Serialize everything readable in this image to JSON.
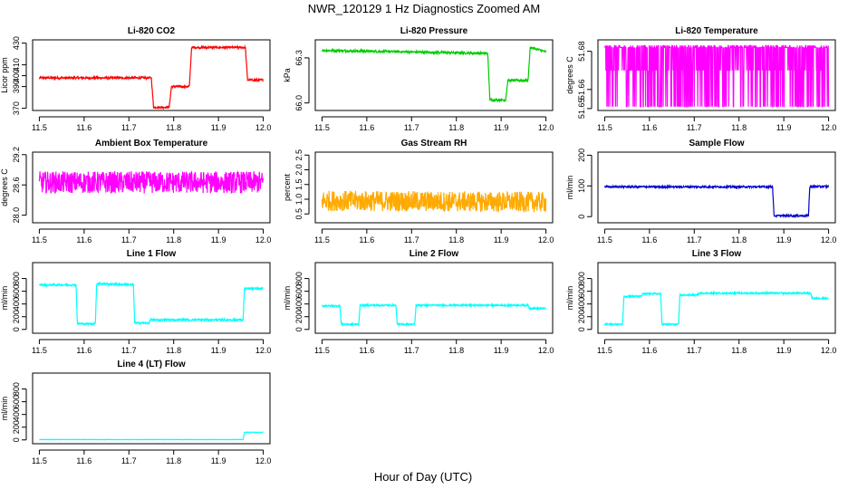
{
  "title": "NWR_120129  1 Hz Diagnostics Zoomed AM",
  "xlabel": "Hour of Day (UTC)",
  "chart_data": [
    {
      "type": "line",
      "title": "Li-820 CO2",
      "ylabel": "Licor ppm",
      "color": "#ff0000",
      "xlim": [
        11.5,
        12.0
      ],
      "ylim": [
        368,
        433
      ],
      "xticks": [
        "11.5",
        "11.6",
        "11.7",
        "11.8",
        "11.9",
        "12.0"
      ],
      "yticks": [
        370,
        390,
        400,
        410,
        430
      ],
      "series": [
        {
          "x": [
            11.5,
            11.75,
            11.755,
            11.79,
            11.795,
            11.835,
            11.84,
            11.96,
            11.965,
            12.0
          ],
          "values": [
            398,
            398,
            371,
            371,
            390,
            390,
            426,
            426,
            396,
            396
          ],
          "noise": 1
        }
      ]
    },
    {
      "type": "line",
      "title": "Li-820 Pressure",
      "ylabel": "kPa",
      "color": "#00cc00",
      "xlim": [
        11.5,
        12.0
      ],
      "ylim": [
        65.95,
        66.42
      ],
      "xticks": [
        "11.5",
        "11.6",
        "11.7",
        "11.8",
        "11.9",
        "12.0"
      ],
      "yticks": [
        "66.0",
        "66.3"
      ],
      "series": [
        {
          "x": [
            11.5,
            11.87,
            11.875,
            11.91,
            11.915,
            11.96,
            11.965,
            12.0
          ],
          "values": [
            66.35,
            66.33,
            66.02,
            66.02,
            66.15,
            66.15,
            66.37,
            66.34
          ],
          "noise": 0.008
        }
      ]
    },
    {
      "type": "line",
      "title": "Li-820 Temperature",
      "ylabel": "degrees C",
      "color": "#ff00ff",
      "xlim": [
        11.5,
        12.0
      ],
      "ylim": [
        51.649,
        51.686
      ],
      "xticks": [
        "11.5",
        "11.6",
        "11.7",
        "11.8",
        "11.9",
        "12.0"
      ],
      "yticks": [
        "51.65",
        "51.66",
        "51.68"
      ],
      "series": [
        {
          "x": [
            11.5,
            12.0
          ],
          "values": [
            51.682,
            51.682
          ],
          "levels": [
            51.651,
            51.67,
            51.682,
            51.682,
            51.683
          ]
        }
      ]
    },
    {
      "type": "line",
      "title": "Ambient Box Temperature",
      "ylabel": "degrees C",
      "color": "#ff00ff",
      "xlim": [
        11.5,
        12.0
      ],
      "ylim": [
        27.85,
        29.25
      ],
      "xticks": [
        "11.5",
        "11.6",
        "11.7",
        "11.8",
        "11.9",
        "12.0"
      ],
      "yticks": [
        "28.0",
        "28.6",
        "29.2"
      ],
      "series": [
        {
          "x": [
            11.5,
            12.0
          ],
          "values": [
            28.65,
            28.65
          ],
          "noise": 0.22
        }
      ]
    },
    {
      "type": "line",
      "title": "Gas Stream RH",
      "ylabel": "percent",
      "color": "#ffaa00",
      "xlim": [
        11.5,
        12.0
      ],
      "ylim": [
        0.2,
        2.6
      ],
      "xticks": [
        "11.5",
        "11.6",
        "11.7",
        "11.8",
        "11.9",
        "12.0"
      ],
      "yticks": [
        "0.5",
        "1.0",
        "1.5",
        "2.0",
        "2.5"
      ],
      "series": [
        {
          "x": [
            11.5,
            12.0
          ],
          "values": [
            0.95,
            0.9
          ],
          "noise": 0.35
        }
      ]
    },
    {
      "type": "line",
      "title": "Sample Flow",
      "ylabel": "ml/min",
      "color": "#0000cc",
      "xlim": [
        11.5,
        12.0
      ],
      "ylim": [
        -20,
        210
      ],
      "xticks": [
        "11.5",
        "11.6",
        "11.7",
        "11.8",
        "11.9",
        "12.0"
      ],
      "yticks": [
        0,
        100,
        200
      ],
      "series": [
        {
          "x": [
            11.5,
            11.875,
            11.878,
            11.955,
            11.958,
            12.0
          ],
          "values": [
            97,
            97,
            3,
            3,
            98,
            98
          ],
          "noise": 3
        }
      ]
    },
    {
      "type": "line",
      "title": "Line 1 Flow",
      "ylabel": "ml/min",
      "color": "#00ffff",
      "xlim": [
        11.5,
        12.0
      ],
      "ylim": [
        -60,
        1050
      ],
      "xticks": [
        "11.5",
        "11.6",
        "11.7",
        "11.8",
        "11.9",
        "12.0"
      ],
      "yticks": [
        0,
        200,
        400,
        600,
        800
      ],
      "series": [
        {
          "x": [
            11.5,
            11.582,
            11.585,
            11.625,
            11.628,
            11.71,
            11.713,
            11.745,
            11.748,
            11.955,
            11.958,
            12.0
          ],
          "values": [
            700,
            700,
            90,
            90,
            720,
            700,
            100,
            100,
            150,
            150,
            640,
            640
          ],
          "noise": 15
        }
      ]
    },
    {
      "type": "line",
      "title": "Line 2 Flow",
      "ylabel": "ml/min",
      "color": "#00ffff",
      "xlim": [
        11.5,
        12.0
      ],
      "ylim": [
        -60,
        1050
      ],
      "xticks": [
        "11.5",
        "11.6",
        "11.7",
        "11.8",
        "11.9",
        "12.0"
      ],
      "yticks": [
        0,
        200,
        400,
        600,
        800
      ],
      "series": [
        {
          "x": [
            11.5,
            11.54,
            11.543,
            11.582,
            11.585,
            11.665,
            11.668,
            11.707,
            11.71,
            11.96,
            11.963,
            12.0
          ],
          "values": [
            370,
            370,
            80,
            80,
            380,
            380,
            80,
            80,
            380,
            380,
            330,
            330
          ],
          "noise": 12
        }
      ]
    },
    {
      "type": "line",
      "title": "Line 3 Flow",
      "ylabel": "ml/min",
      "color": "#00ffff",
      "xlim": [
        11.5,
        12.0
      ],
      "ylim": [
        -60,
        1050
      ],
      "xticks": [
        "11.5",
        "11.6",
        "11.7",
        "11.8",
        "11.9",
        "12.0"
      ],
      "yticks": [
        0,
        200,
        400,
        600,
        800
      ],
      "series": [
        {
          "x": [
            11.5,
            11.54,
            11.543,
            11.582,
            11.585,
            11.625,
            11.628,
            11.665,
            11.668,
            11.707,
            11.71,
            11.96,
            11.963,
            12.0
          ],
          "values": [
            80,
            80,
            520,
            520,
            560,
            560,
            80,
            80,
            540,
            540,
            570,
            570,
            490,
            490
          ],
          "noise": 12
        }
      ]
    },
    {
      "type": "line",
      "title": "Line 4 (LT) Flow",
      "ylabel": "ml/min",
      "color": "#00ffff",
      "xlim": [
        11.5,
        12.0
      ],
      "ylim": [
        -60,
        1050
      ],
      "xticks": [
        "11.5",
        "11.6",
        "11.7",
        "11.8",
        "11.9",
        "12.0"
      ],
      "yticks": [
        0,
        200,
        400,
        600,
        800
      ],
      "series": [
        {
          "x": [
            11.5,
            11.955,
            11.958,
            12.0
          ],
          "values": [
            5,
            5,
            120,
            120
          ],
          "noise": 2
        }
      ]
    }
  ]
}
